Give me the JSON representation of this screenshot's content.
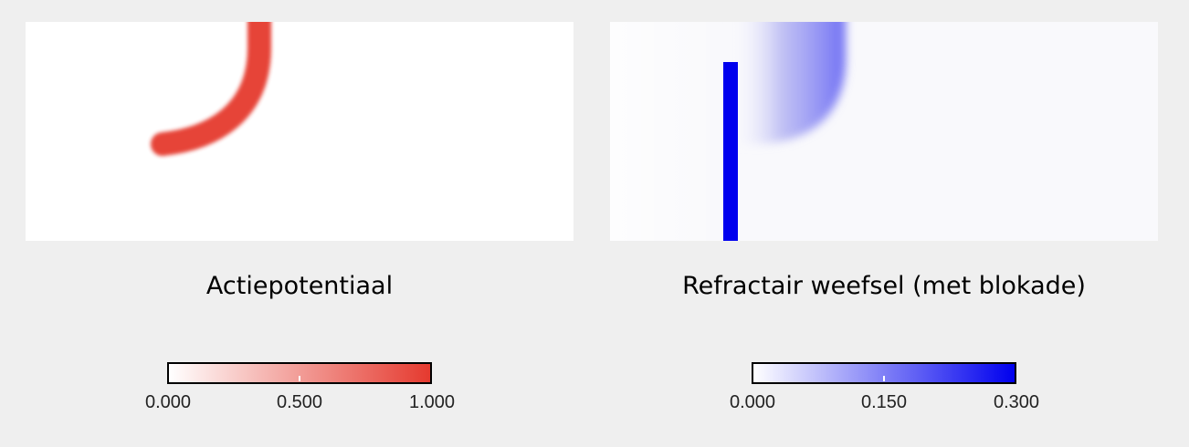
{
  "panels": [
    {
      "title": "Actiepotentiaal",
      "colorbar": {
        "min_label": "0.000",
        "mid_label": "0.500",
        "max_label": "1.000",
        "color_min": "#ffffff",
        "color_max": "#e53a2f"
      }
    },
    {
      "title": "Refractair weefsel (met blokade)",
      "colorbar": {
        "min_label": "0.000",
        "mid_label": "0.150",
        "max_label": "0.300",
        "color_min": "#ffffff",
        "color_max": "#0000ee"
      }
    }
  ],
  "colors": {
    "background": "#efefef",
    "action_potential": "#e53a2f",
    "refractory": "#0000ee",
    "block": "#0000ee"
  }
}
